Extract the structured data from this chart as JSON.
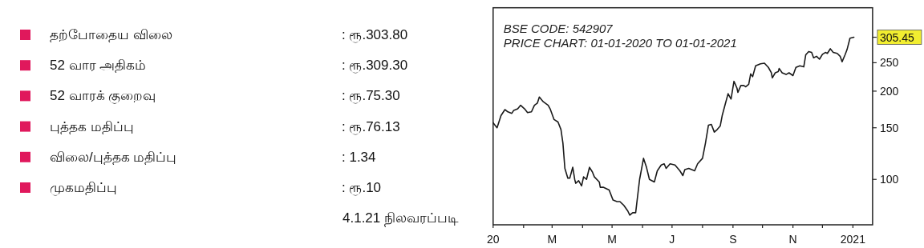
{
  "chart_data": [
    {
      "type": "other",
      "colors": [
        "#e0185c",
        "#e0185c",
        "#e0185c",
        "#e0185c",
        "#e0185c",
        "#e0185c"
      ],
      "annotations": [
        "தற்போதைய விலை",
        ": ரூ.303.80",
        "52 வார அதிகம்",
        ": ரூ.309.30",
        "52 வாரக் குறைவு",
        ": ரூ.75.30",
        "புத்தக மதிப்பு",
        ": ரூ.76.13",
        "விலை/புத்தக மதிப்பு",
        ": 1.34",
        "முகமதிப்பு",
        ": ரூ.10",
        "4.1.21 நிலவரப்படி"
      ]
    },
    {
      "type": "line",
      "title": "BSE CODE: 542907",
      "subtitle": "PRICE CHART: 01-01-2020 TO 01-01-2021",
      "log": true,
      "grid": false,
      "line_style": "solid",
      "xlim": [
        "2020-01-01",
        "2021-01-21"
      ],
      "xticks": [
        {
          "value": "2020-01-01",
          "label": "20"
        },
        {
          "value": "2020-02-01",
          "label": null
        },
        {
          "value": "2020-03-01",
          "label": "M"
        },
        {
          "value": "2020-04-01",
          "label": null
        },
        {
          "value": "2020-05-01",
          "label": "M"
        },
        {
          "value": "2020-06-01",
          "label": null
        },
        {
          "value": "2020-07-01",
          "label": "J"
        },
        {
          "value": "2020-08-01",
          "label": null
        },
        {
          "value": "2020-09-01",
          "label": "S"
        },
        {
          "value": "2020-10-01",
          "label": null
        },
        {
          "value": "2020-11-01",
          "label": "N"
        },
        {
          "value": "2020-12-01",
          "label": null
        },
        {
          "value": "2021-01-01",
          "label": "2021"
        }
      ],
      "ylim": [
        70,
        385
      ],
      "yticks": [
        100,
        150,
        200,
        250,
        {
          "value": 305.45,
          "label": "305.45"
        }
      ],
      "series": [
        {
          "color": "#1a1a1a",
          "x": [
            "2020-01-01",
            "2020-01-05",
            "2020-01-09",
            "2020-01-13",
            "2020-01-16",
            "2020-01-20",
            "2020-01-22",
            "2020-01-26",
            "2020-01-29",
            "2020-02-02",
            "2020-02-05",
            "2020-02-09",
            "2020-02-12",
            "2020-02-15",
            "2020-02-17",
            "2020-02-21",
            "2020-02-26",
            "2020-02-28",
            "2020-03-03",
            "2020-03-07",
            "2020-03-10",
            "2020-03-12",
            "2020-03-14",
            "2020-03-17",
            "2020-03-19",
            "2020-03-22",
            "2020-03-24",
            "2020-03-25",
            "2020-03-28",
            "2020-03-31",
            "2020-04-02",
            "2020-04-05",
            "2020-04-08",
            "2020-04-11",
            "2020-04-13",
            "2020-04-18",
            "2020-04-19",
            "2020-04-22",
            "2020-04-28",
            "2020-05-02",
            "2020-05-06",
            "2020-05-09",
            "2020-05-13",
            "2020-05-17",
            "2020-05-19",
            "2020-05-22",
            "2020-05-25",
            "2020-05-29",
            "2020-06-02",
            "2020-06-05",
            "2020-06-08",
            "2020-06-13",
            "2020-06-16",
            "2020-06-20",
            "2020-06-23",
            "2020-06-25",
            "2020-06-29",
            "2020-07-04",
            "2020-07-09",
            "2020-07-12",
            "2020-07-14",
            "2020-07-18",
            "2020-07-24",
            "2020-07-27",
            "2020-08-01",
            "2020-08-04",
            "2020-08-07",
            "2020-08-10",
            "2020-08-13",
            "2020-08-16",
            "2020-08-19",
            "2020-08-21",
            "2020-08-24",
            "2020-08-27",
            "2020-08-30",
            "2020-09-02",
            "2020-09-05",
            "2020-09-06",
            "2020-09-09",
            "2020-09-12",
            "2020-09-14",
            "2020-09-17",
            "2020-09-19",
            "2020-09-21",
            "2020-09-24",
            "2020-09-29",
            "2020-10-03",
            "2020-10-07",
            "2020-10-10",
            "2020-10-11",
            "2020-10-14",
            "2020-10-17",
            "2020-10-18",
            "2020-10-21",
            "2020-10-25",
            "2020-10-28",
            "2020-11-01",
            "2020-11-04",
            "2020-11-08",
            "2020-11-12",
            "2020-11-14",
            "2020-11-17",
            "2020-11-20",
            "2020-11-22",
            "2020-11-25",
            "2020-11-28",
            "2020-12-01",
            "2020-12-04",
            "2020-12-06",
            "2020-12-09",
            "2020-12-12",
            "2020-12-16",
            "2020-12-19",
            "2020-12-21",
            "2020-12-24",
            "2020-12-26",
            "2020-12-29",
            "2021-01-02"
          ],
          "values": [
            156,
            150,
            165,
            173,
            170,
            168,
            172,
            174,
            179,
            174,
            169,
            170,
            179,
            182,
            191,
            184,
            179,
            174,
            160,
            157,
            148,
            133,
            109,
            101,
            101,
            110,
            100,
            97,
            99,
            95,
            102,
            100,
            110,
            106,
            102,
            98,
            94,
            94,
            92,
            85,
            84,
            84,
            81.5,
            78,
            75.5,
            77,
            77,
            100,
            118,
            110,
            100,
            98,
            107,
            112,
            113,
            109,
            113,
            112,
            107,
            103,
            108,
            109,
            107,
            113,
            118,
            133,
            153,
            154,
            145,
            148,
            152,
            165,
            180,
            196,
            188,
            216,
            205,
            198,
            209,
            209,
            207,
            211,
            229,
            224,
            244,
            248,
            249,
            241,
            231,
            222,
            231,
            233,
            239,
            231,
            228,
            231,
            226,
            241,
            244,
            242,
            266,
            273,
            271,
            260,
            263,
            257,
            267,
            271,
            269,
            279,
            271,
            269,
            263,
            252,
            266,
            277,
            303,
            305.45
          ]
        }
      ]
    }
  ]
}
